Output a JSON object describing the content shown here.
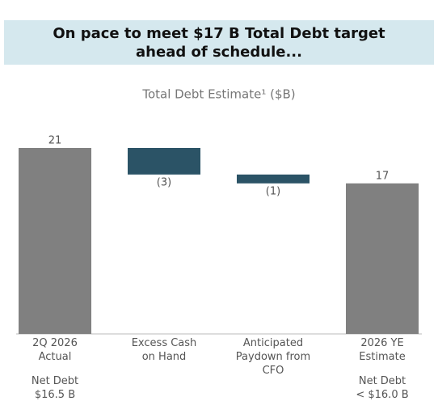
{
  "headline": "On pace to meet $17 B Total Debt target\nahead of schedule...",
  "chart_data": {
    "type": "waterfall",
    "title": "Total Debt Estimate¹ ($B)",
    "categories": [
      "2Q 2026\nActual",
      "Excess Cash\non Hand",
      "Anticipated\nPaydown from\nCFO",
      "2026 YE\nEstimate"
    ],
    "values": [
      21,
      -3,
      -1,
      17
    ],
    "value_labels": [
      "21",
      "(3)",
      "(1)",
      "17"
    ],
    "measure": [
      "absolute",
      "relative",
      "relative",
      "absolute"
    ],
    "notes": [
      "Net Debt\n$16.5 B",
      null,
      null,
      "Net Debt\n< $16.0 B"
    ],
    "colors": {
      "absolute": "#808080",
      "relative": "#2b5366"
    },
    "ylim": [
      0,
      21
    ]
  }
}
